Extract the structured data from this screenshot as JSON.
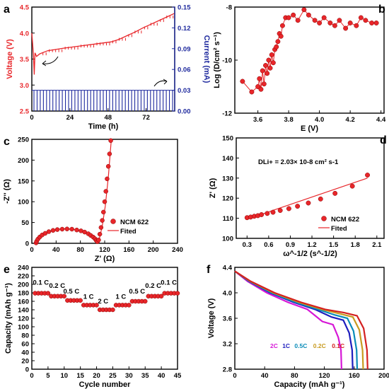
{
  "chart_data": [
    {
      "id": "a",
      "type": "line",
      "letter": "a",
      "xlabel": "Time (h)",
      "ylabel": "Voltage (V)",
      "y2label": "Current (mA)",
      "xlim": [
        0,
        90
      ],
      "ylim": [
        2.5,
        4.5
      ],
      "y2lim": [
        0.0,
        0.15
      ],
      "xticks": [
        "0",
        "24",
        "48",
        "72"
      ],
      "xtickvals": [
        0,
        24,
        48,
        72
      ],
      "yticks": [
        "2.5",
        "3.0",
        "3.5",
        "4.0",
        "4.5"
      ],
      "ytickvals": [
        2.5,
        3.0,
        3.5,
        4.0,
        4.5
      ],
      "y2ticks": [
        "0.00",
        "0.03",
        "0.06",
        "0.09",
        "0.12",
        "0.15"
      ],
      "y2tickvals": [
        0,
        0.03,
        0.06,
        0.09,
        0.12,
        0.15
      ],
      "colors": {
        "voltage": "#e8262a",
        "current": "#1f2a9e"
      },
      "series": [
        {
          "axis": "left",
          "x": [
            0,
            1,
            1.5,
            2,
            3,
            5,
            10,
            20,
            30,
            40,
            50,
            55,
            60,
            65,
            70,
            75,
            80,
            85,
            90
          ],
          "y": [
            4.0,
            3.6,
            3.2,
            3.62,
            3.55,
            3.6,
            3.66,
            3.71,
            3.75,
            3.79,
            3.83,
            3.88,
            3.95,
            4.02,
            4.1,
            4.17,
            4.24,
            4.31,
            4.38
          ]
        },
        {
          "axis": "right",
          "pulse_value": 0.03,
          "pulse_count": 45
        }
      ]
    },
    {
      "id": "b",
      "type": "scatter",
      "letter": "b",
      "xlabel": "E (V)",
      "ylabel": "Log (D/cm² s⁻¹)",
      "xlim": [
        3.45,
        4.42
      ],
      "ylim": [
        -12,
        -8
      ],
      "xticks": [
        "3.6",
        "3.8",
        "4.0",
        "4.2",
        "4.4"
      ],
      "xtickvals": [
        3.6,
        3.8,
        4.0,
        4.2,
        4.4
      ],
      "yticks": [
        "-12",
        "-10",
        "-8"
      ],
      "ytickvals": [
        -12,
        -10,
        -8
      ],
      "colors": {
        "points": "#e8262a"
      },
      "series": [
        {
          "x": [
            3.5,
            3.56,
            3.6,
            3.61,
            3.62,
            3.63,
            3.64,
            3.65,
            3.66,
            3.67,
            3.68,
            3.69,
            3.7,
            3.71,
            3.72,
            3.73,
            3.74,
            3.75,
            3.76,
            3.78,
            3.8,
            3.83,
            3.86,
            3.9,
            3.93,
            3.97,
            4.0,
            4.03,
            4.07,
            4.1,
            4.13,
            4.17,
            4.2,
            4.24,
            4.27,
            4.3,
            4.34,
            4.37
          ],
          "y": [
            -10.8,
            -11.2,
            -11.0,
            -10.7,
            -11.1,
            -10.4,
            -10.9,
            -10.2,
            -10.5,
            -10.0,
            -10.3,
            -9.8,
            -10.1,
            -9.6,
            -9.5,
            -9.3,
            -9.0,
            -9.1,
            -8.7,
            -8.4,
            -8.4,
            -8.3,
            -8.5,
            -8.1,
            -8.3,
            -8.5,
            -8.6,
            -8.4,
            -8.6,
            -8.7,
            -8.5,
            -8.8,
            -8.6,
            -8.7,
            -8.4,
            -8.5,
            -8.6,
            -8.6
          ]
        }
      ]
    },
    {
      "id": "c",
      "type": "scatter",
      "letter": "c",
      "xlabel": "Z' (Ω)",
      "ylabel": "-Z'' (Ω)",
      "xlim": [
        0,
        240
      ],
      "ylim": [
        0,
        250
      ],
      "xticks": [
        "0",
        "40",
        "80",
        "120",
        "160",
        "200",
        "240"
      ],
      "xtickvals": [
        0,
        40,
        80,
        120,
        160,
        200,
        240
      ],
      "yticks": [
        "0",
        "50",
        "100",
        "150",
        "200",
        "250"
      ],
      "ytickvals": [
        0,
        50,
        100,
        150,
        200,
        250
      ],
      "colors": {
        "points": "#e8262a",
        "fit": "#e8262a"
      },
      "legend": [
        {
          "label": "NCM 622",
          "kind": "marker"
        },
        {
          "label": "Fited",
          "kind": "line"
        }
      ],
      "series": [
        {
          "name": "NCM 622",
          "x": [
            7,
            8,
            10,
            13,
            17,
            22,
            28,
            35,
            42,
            50,
            58,
            66,
            74,
            81,
            87,
            93,
            97,
            101,
            104,
            106,
            108,
            110,
            112,
            114,
            116,
            118,
            120,
            122,
            124,
            126,
            128,
            130
          ],
          "y": [
            1,
            5,
            10,
            15,
            20,
            24,
            28,
            31,
            33,
            34,
            34.5,
            34,
            32,
            30,
            27,
            23,
            19,
            15,
            11,
            7,
            4,
            8,
            22,
            38,
            55,
            75,
            100,
            125,
            155,
            185,
            215,
            247
          ]
        },
        {
          "name": "Fited",
          "x": [
            6,
            15,
            30,
            45,
            57,
            70,
            82,
            92,
            100,
            105,
            109,
            112,
            116,
            121,
            126,
            131
          ],
          "y": [
            0,
            18,
            29,
            34,
            35,
            33,
            29,
            22,
            14,
            8,
            5,
            15,
            42,
            90,
            160,
            250
          ]
        }
      ]
    },
    {
      "id": "d",
      "type": "scatter",
      "letter": "d",
      "xlabel": "ω^-1/2 (s^-1/2)",
      "ylabel": "Z' (Ω)",
      "xlim": [
        0.15,
        2.2
      ],
      "ylim": [
        100,
        150
      ],
      "xticks": [
        "0.3",
        "0.6",
        "0.9",
        "1.2",
        "1.5",
        "1.8",
        "2.1"
      ],
      "xtickvals": [
        0.3,
        0.6,
        0.9,
        1.2,
        1.5,
        1.8,
        2.1
      ],
      "yticks": [
        "100",
        "110",
        "120",
        "130",
        "140",
        "150"
      ],
      "ytickvals": [
        100,
        110,
        120,
        130,
        140,
        150
      ],
      "colors": {
        "points": "#e8262a",
        "fit": "#e8262a"
      },
      "annotation": "DLi+ = 2.03× 10-8 cm² s-1",
      "legend": [
        {
          "label": "NCM 622",
          "kind": "marker"
        },
        {
          "label": "Fited",
          "kind": "line"
        }
      ],
      "series": [
        {
          "name": "NCM 622",
          "x": [
            0.3,
            0.35,
            0.4,
            0.45,
            0.5,
            0.58,
            0.66,
            0.76,
            0.88,
            1.0,
            1.15,
            1.32,
            1.52,
            1.76,
            1.97
          ],
          "y": [
            110.3,
            110.6,
            111.0,
            111.3,
            111.8,
            112.4,
            113.0,
            113.9,
            114.8,
            116.0,
            117.6,
            119.6,
            122.4,
            126.0,
            131.5
          ]
        },
        {
          "name": "Fited",
          "x": [
            0.3,
            1.97
          ],
          "y": [
            109.5,
            130.0
          ]
        }
      ]
    },
    {
      "id": "e",
      "type": "scatter",
      "letter": "e",
      "xlabel": "Cycle number",
      "ylabel": "Capacity (mAh g⁻¹)",
      "xlim": [
        0,
        45
      ],
      "ylim": [
        0,
        240
      ],
      "xticks": [
        "0",
        "5",
        "10",
        "15",
        "20",
        "25",
        "30",
        "35",
        "40",
        "45"
      ],
      "xtickvals": [
        0,
        5,
        10,
        15,
        20,
        25,
        30,
        35,
        40,
        45
      ],
      "yticks": [
        "0",
        "20",
        "40",
        "60",
        "80",
        "100",
        "120",
        "140",
        "160",
        "180",
        "200",
        "220",
        "240"
      ],
      "ytickvals": [
        0,
        20,
        40,
        60,
        80,
        100,
        120,
        140,
        160,
        180,
        200,
        220,
        240
      ],
      "colors": {
        "points": "#e8262a"
      },
      "rate_labels": [
        {
          "text": "0.1 C",
          "x": 2.8,
          "y": 199
        },
        {
          "text": "0.2 C",
          "x": 7.8,
          "y": 192
        },
        {
          "text": "0.5 C",
          "x": 12.2,
          "y": 178
        },
        {
          "text": "1 C",
          "x": 17.5,
          "y": 166
        },
        {
          "text": "2 C",
          "x": 22.0,
          "y": 155
        },
        {
          "text": "1 C",
          "x": 27.5,
          "y": 166
        },
        {
          "text": "0.5 C",
          "x": 32.5,
          "y": 178
        },
        {
          "text": "0.2 C",
          "x": 37.5,
          "y": 192
        },
        {
          "text": "0.1 C",
          "x": 42.3,
          "y": 199
        }
      ],
      "series": [
        {
          "x": [
            1,
            2,
            3,
            4,
            5,
            6,
            7,
            8,
            9,
            10,
            11,
            12,
            13,
            14,
            15,
            16,
            17,
            18,
            19,
            20,
            21,
            22,
            23,
            24,
            25,
            26,
            27,
            28,
            29,
            30,
            31,
            32,
            33,
            34,
            35,
            36,
            37,
            38,
            39,
            40,
            41,
            42,
            43,
            44,
            45
          ],
          "y": [
            179,
            179,
            179,
            179,
            179,
            172,
            172,
            172,
            172,
            172,
            162,
            162,
            162,
            162,
            162,
            151,
            151,
            151,
            151,
            151,
            140,
            140,
            140,
            140,
            140,
            151,
            151,
            151,
            151,
            151,
            160,
            160,
            160,
            160,
            160,
            172,
            172,
            172,
            172,
            172,
            179,
            179,
            179,
            179,
            179
          ]
        }
      ]
    },
    {
      "id": "f",
      "type": "line",
      "letter": "f",
      "xlabel": "Capacity (mAh g⁻¹)",
      "ylabel": "Voltage (V)",
      "xlim": [
        0,
        200
      ],
      "ylim": [
        2.8,
        4.4
      ],
      "xticks": [
        "0",
        "40",
        "80",
        "120",
        "160",
        "200"
      ],
      "xtickvals": [
        0,
        40,
        80,
        120,
        160,
        200
      ],
      "yticks": [
        "2.8",
        "3.2",
        "3.6",
        "4.0",
        "4.4"
      ],
      "ytickvals": [
        2.8,
        3.2,
        3.6,
        4.0,
        4.4
      ],
      "legend": [
        {
          "label": "2C",
          "color": "#d617d6"
        },
        {
          "label": "1C",
          "color": "#1d1dbd"
        },
        {
          "label": "0.5C",
          "color": "#0a8cb8"
        },
        {
          "label": "0.2C",
          "color": "#c89b20"
        },
        {
          "label": "0.1C",
          "color": "#d42020"
        }
      ],
      "series": [
        {
          "name": "2C",
          "color": "#d617d6",
          "capacity": 143,
          "plateau": 3.55
        },
        {
          "name": "1C",
          "color": "#1d1dbd",
          "capacity": 158,
          "plateau": 3.62
        },
        {
          "name": "0.5C",
          "color": "#0a8cb8",
          "capacity": 164,
          "plateau": 3.65
        },
        {
          "name": "0.2C",
          "color": "#c89b20",
          "capacity": 172,
          "plateau": 3.67
        },
        {
          "name": "0.1C",
          "color": "#d42020",
          "capacity": 178,
          "plateau": 3.69
        }
      ]
    }
  ]
}
